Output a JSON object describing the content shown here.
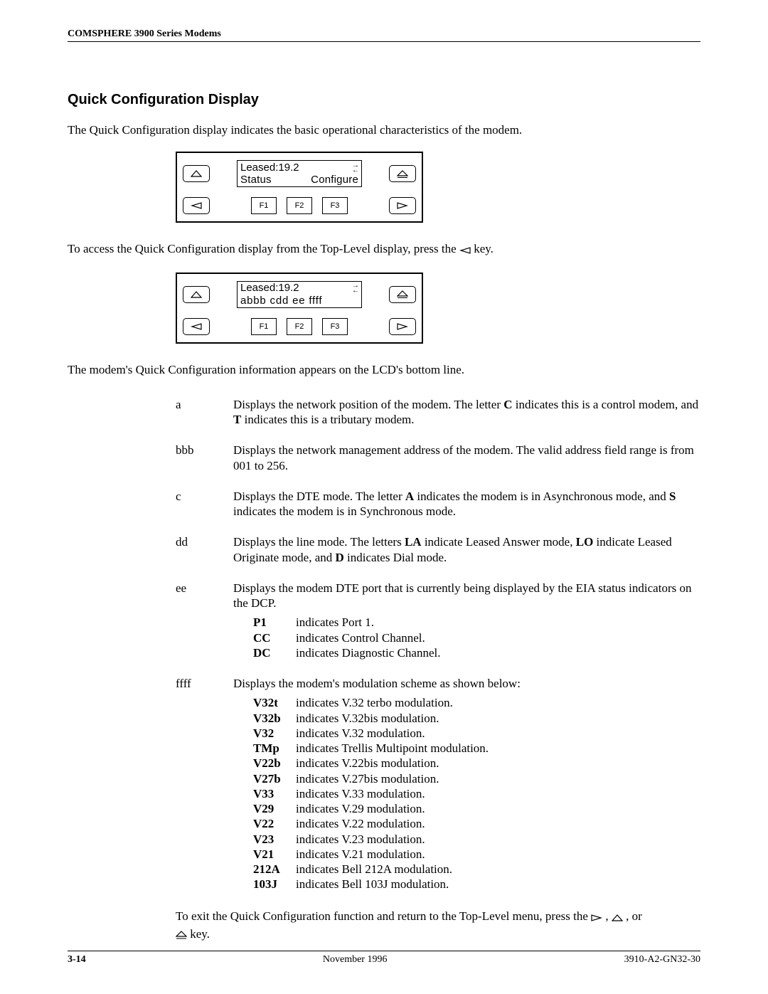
{
  "header": {
    "running": "COMSPHERE 3900 Series Modems"
  },
  "section": {
    "title": "Quick Configuration Display"
  },
  "intro": "The Quick Configuration display indicates the basic operational characteristics of the modem.",
  "panel1": {
    "line1": "Leased:19.2",
    "line2_left": "Status",
    "line2_right": "Configure",
    "f1": "F1",
    "f2": "F2",
    "f3": "F3"
  },
  "access_text_before": "To access the Quick Configuration display from the Top-Level display, press the  ",
  "access_text_after": "  key.",
  "panel2": {
    "line1": "Leased:19.2",
    "line2": "abbb  cdd  ee  ffff",
    "f1": "F1",
    "f2": "F2",
    "f3": "F3"
  },
  "lcd_line_text": "The modem's Quick Configuration information appears on the LCD's bottom line.",
  "defs": {
    "a": {
      "key": "a",
      "pre": "Displays the network position of the modem. The letter ",
      "b1": "C",
      "mid1": " indicates this is a control modem, and ",
      "b2": "T",
      "post": " indicates this is a tributary modem."
    },
    "bbb": {
      "key": "bbb",
      "text": "Displays the network management address of the modem. The valid address field range is from 001 to 256."
    },
    "c": {
      "key": "c",
      "pre": "Displays the DTE mode. The letter ",
      "b1": "A",
      "mid1": " indicates the modem is in Asynchronous mode, and ",
      "b2": "S",
      "post": " indicates the modem is in Synchronous mode."
    },
    "dd": {
      "key": "dd",
      "pre": "Displays the line mode. The letters ",
      "b1": "LA",
      "mid1": " indicate Leased Answer mode, ",
      "b2": "LO",
      "mid2": " indicate Leased Originate mode, and ",
      "b3": "D",
      "post": " indicates Dial mode."
    },
    "ee": {
      "key": "ee",
      "text": "Displays the modem DTE port that is currently being displayed by the EIA status indicators on the DCP.",
      "sub": [
        {
          "code": "P1",
          "desc": "indicates Port 1."
        },
        {
          "code": "CC",
          "desc": "indicates Control Channel."
        },
        {
          "code": "DC",
          "desc": "indicates Diagnostic Channel."
        }
      ]
    },
    "ffff": {
      "key": "ffff",
      "text": "Displays the modem's modulation scheme as shown below:",
      "sub": [
        {
          "code": "V32t",
          "desc": "indicates V.32 terbo modulation."
        },
        {
          "code": "V32b",
          "desc": "indicates V.32bis modulation."
        },
        {
          "code": "V32",
          "desc": "indicates V.32 modulation."
        },
        {
          "code": "TMp",
          "desc": "indicates Trellis Multipoint modulation."
        },
        {
          "code": "V22b",
          "desc": "indicates V.22bis modulation."
        },
        {
          "code": "V27b",
          "desc": "indicates V.27bis modulation."
        },
        {
          "code": "V33",
          "desc": "indicates V.33 modulation."
        },
        {
          "code": "V29",
          "desc": "indicates V.29 modulation."
        },
        {
          "code": "V22",
          "desc": "indicates V.22 modulation."
        },
        {
          "code": "V23",
          "desc": "indicates V.23 modulation."
        },
        {
          "code": "V21",
          "desc": "indicates V.21 modulation."
        },
        {
          "code": "212A",
          "desc": "indicates Bell 212A modulation."
        },
        {
          "code": "103J",
          "desc": "indicates Bell 103J modulation."
        }
      ]
    }
  },
  "exit": {
    "pre": "To exit the Quick Configuration function and return to the Top-Level menu, press the ",
    "sep1": " ,  ",
    "sep2": " , or ",
    "post": "  key."
  },
  "footer": {
    "page": "3-14",
    "date": "November 1996",
    "docnum": "3910-A2-GN32-30"
  }
}
